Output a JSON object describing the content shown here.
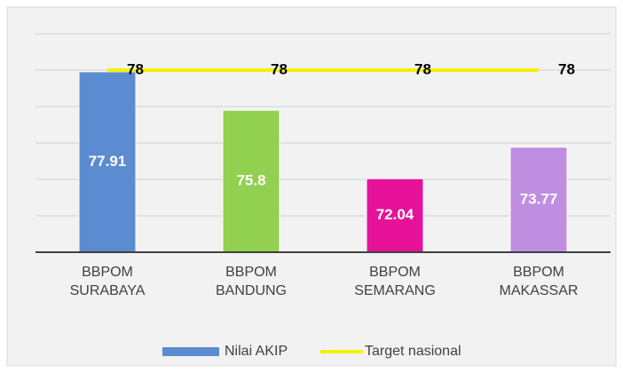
{
  "chart_data": {
    "type": "bar_line",
    "categories": [
      "BBPOM SURABAYA",
      "BBPOM BANDUNG",
      "BBPOM SEMARANG",
      "BBPOM MAKASSAR"
    ],
    "series": [
      {
        "name": "Nilai AKIP",
        "type": "bar",
        "color": "#5b8bd0",
        "colors": [
          "#5b8bd0",
          "#92d050",
          "#e6129a",
          "#c08ee0"
        ],
        "values": [
          77.91,
          75.8,
          72.04,
          73.77
        ]
      },
      {
        "name": "Target nasional",
        "type": "line",
        "color": "#f2f200",
        "values": [
          78,
          78,
          78,
          78
        ]
      }
    ],
    "ylim": [
      68,
      80
    ],
    "yticks": [
      68,
      70,
      72,
      74,
      76,
      78,
      80
    ],
    "grid": true,
    "legend": "bottom"
  }
}
